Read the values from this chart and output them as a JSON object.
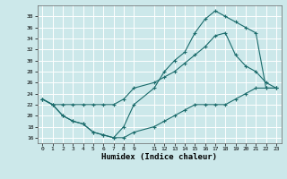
{
  "title": "",
  "xlabel": "Humidex (Indice chaleur)",
  "background_color": "#cce8ea",
  "grid_color": "#ffffff",
  "line_color": "#1a6b6b",
  "xlim": [
    -0.5,
    23.5
  ],
  "ylim": [
    15,
    40
  ],
  "xtick_positions": [
    0,
    1,
    2,
    3,
    4,
    5,
    6,
    7,
    8,
    9,
    11,
    12,
    13,
    14,
    15,
    16,
    17,
    18,
    19,
    20,
    21,
    22,
    23
  ],
  "xtick_labels": [
    "0",
    "1",
    "2",
    "3",
    "4",
    "5",
    "6",
    "7",
    "8",
    "9",
    "11",
    "12",
    "13",
    "14",
    "15",
    "16",
    "17",
    "18",
    "19",
    "20",
    "21",
    "22",
    "23"
  ],
  "ytick_positions": [
    16,
    18,
    20,
    22,
    24,
    26,
    28,
    30,
    32,
    34,
    36,
    38
  ],
  "ytick_labels": [
    "16",
    "18",
    "20",
    "22",
    "24",
    "26",
    "28",
    "30",
    "32",
    "34",
    "36",
    "38"
  ],
  "curve1_x": [
    0,
    1,
    2,
    3,
    4,
    5,
    6,
    7,
    8,
    9,
    11,
    12,
    13,
    14,
    15,
    16,
    17,
    18,
    19,
    20,
    21,
    22,
    23
  ],
  "curve1_y": [
    23,
    22,
    20,
    19,
    18.5,
    17,
    16.5,
    16,
    16,
    17,
    18,
    19,
    20,
    21,
    22,
    22,
    22,
    22,
    23,
    24,
    25,
    25,
    25
  ],
  "curve2_x": [
    0,
    1,
    2,
    3,
    4,
    5,
    6,
    7,
    8,
    9,
    11,
    12,
    13,
    14,
    15,
    16,
    17,
    18,
    19,
    20,
    21,
    22,
    23
  ],
  "curve2_y": [
    23,
    22,
    22,
    22,
    22,
    22,
    22,
    22,
    23,
    25,
    26,
    27,
    28,
    29.5,
    31,
    32.5,
    34.5,
    35,
    31,
    29,
    28,
    26,
    25
  ],
  "curve3_x": [
    0,
    1,
    2,
    3,
    4,
    5,
    6,
    7,
    8,
    9,
    11,
    12,
    13,
    14,
    15,
    16,
    17,
    18,
    19,
    20,
    21,
    22,
    23
  ],
  "curve3_y": [
    23,
    22,
    20,
    19,
    18.5,
    17,
    16.5,
    16,
    18,
    22,
    25,
    28,
    30,
    31.5,
    35,
    37.5,
    39,
    38,
    37,
    36,
    35,
    25,
    25
  ]
}
